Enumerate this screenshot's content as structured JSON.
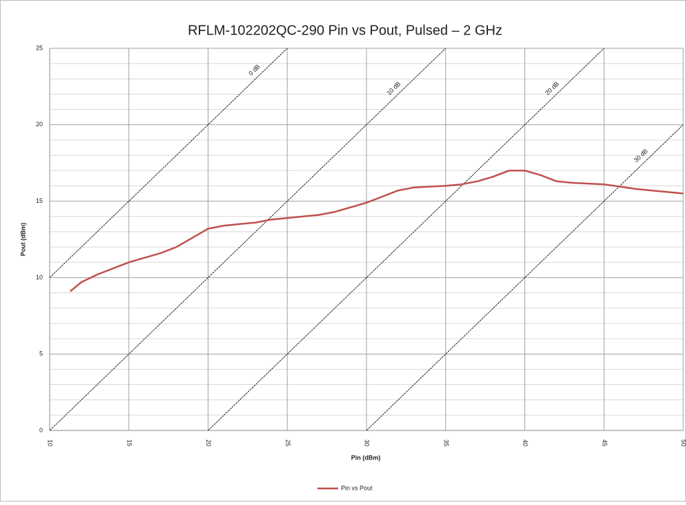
{
  "chart_data": {
    "type": "line",
    "title": "RFLM-102202QC-290  Pin vs Pout, Pulsed – 2 GHz",
    "x_label": "Pin (dBm)",
    "y_label": "Pout (dBm)",
    "xlim": [
      10,
      50
    ],
    "ylim": [
      0,
      25
    ],
    "xticks": [
      10,
      15,
      20,
      25,
      30,
      35,
      40,
      45,
      50
    ],
    "yticks": [
      0,
      5,
      10,
      15,
      20,
      25
    ],
    "y_minor_ticks": [
      1,
      2,
      3,
      4,
      6,
      7,
      8,
      9,
      11,
      12,
      13,
      14,
      16,
      17,
      18,
      19,
      21,
      22,
      23,
      24
    ],
    "grid": true,
    "legend": "bottom",
    "series": [
      {
        "name": "Pin vs Pout",
        "color": "#c0504d",
        "x": [
          11.3,
          12,
          13,
          14,
          15,
          16,
          17,
          18,
          19,
          20,
          21,
          22,
          23,
          24,
          25,
          26,
          27,
          28,
          29,
          30,
          31,
          32,
          33,
          34,
          35,
          36,
          37,
          38,
          39,
          40,
          41,
          42,
          43,
          44,
          45,
          46,
          47,
          48,
          49,
          50
        ],
        "values": [
          9.1,
          9.7,
          10.2,
          10.6,
          11.0,
          11.3,
          11.6,
          12.0,
          12.6,
          13.2,
          13.4,
          13.5,
          13.6,
          13.8,
          13.9,
          14.0,
          14.1,
          14.3,
          14.6,
          14.9,
          15.3,
          15.7,
          15.9,
          15.95,
          16.0,
          16.1,
          16.3,
          16.6,
          17.0,
          17.0,
          16.7,
          16.3,
          16.2,
          16.15,
          16.1,
          15.95,
          15.8,
          15.7,
          15.6,
          15.5
        ]
      }
    ],
    "reference_lines": [
      {
        "label": "0 dB",
        "x": [
          10,
          25
        ],
        "y": [
          10,
          25
        ]
      },
      {
        "label": "10 dB",
        "x": [
          10,
          35
        ],
        "y": [
          0,
          25
        ]
      },
      {
        "label": "20 dB",
        "x": [
          20,
          45
        ],
        "y": [
          0,
          25
        ]
      },
      {
        "label": "30 dB",
        "x": [
          30,
          50
        ],
        "y": [
          0,
          20
        ]
      }
    ]
  }
}
